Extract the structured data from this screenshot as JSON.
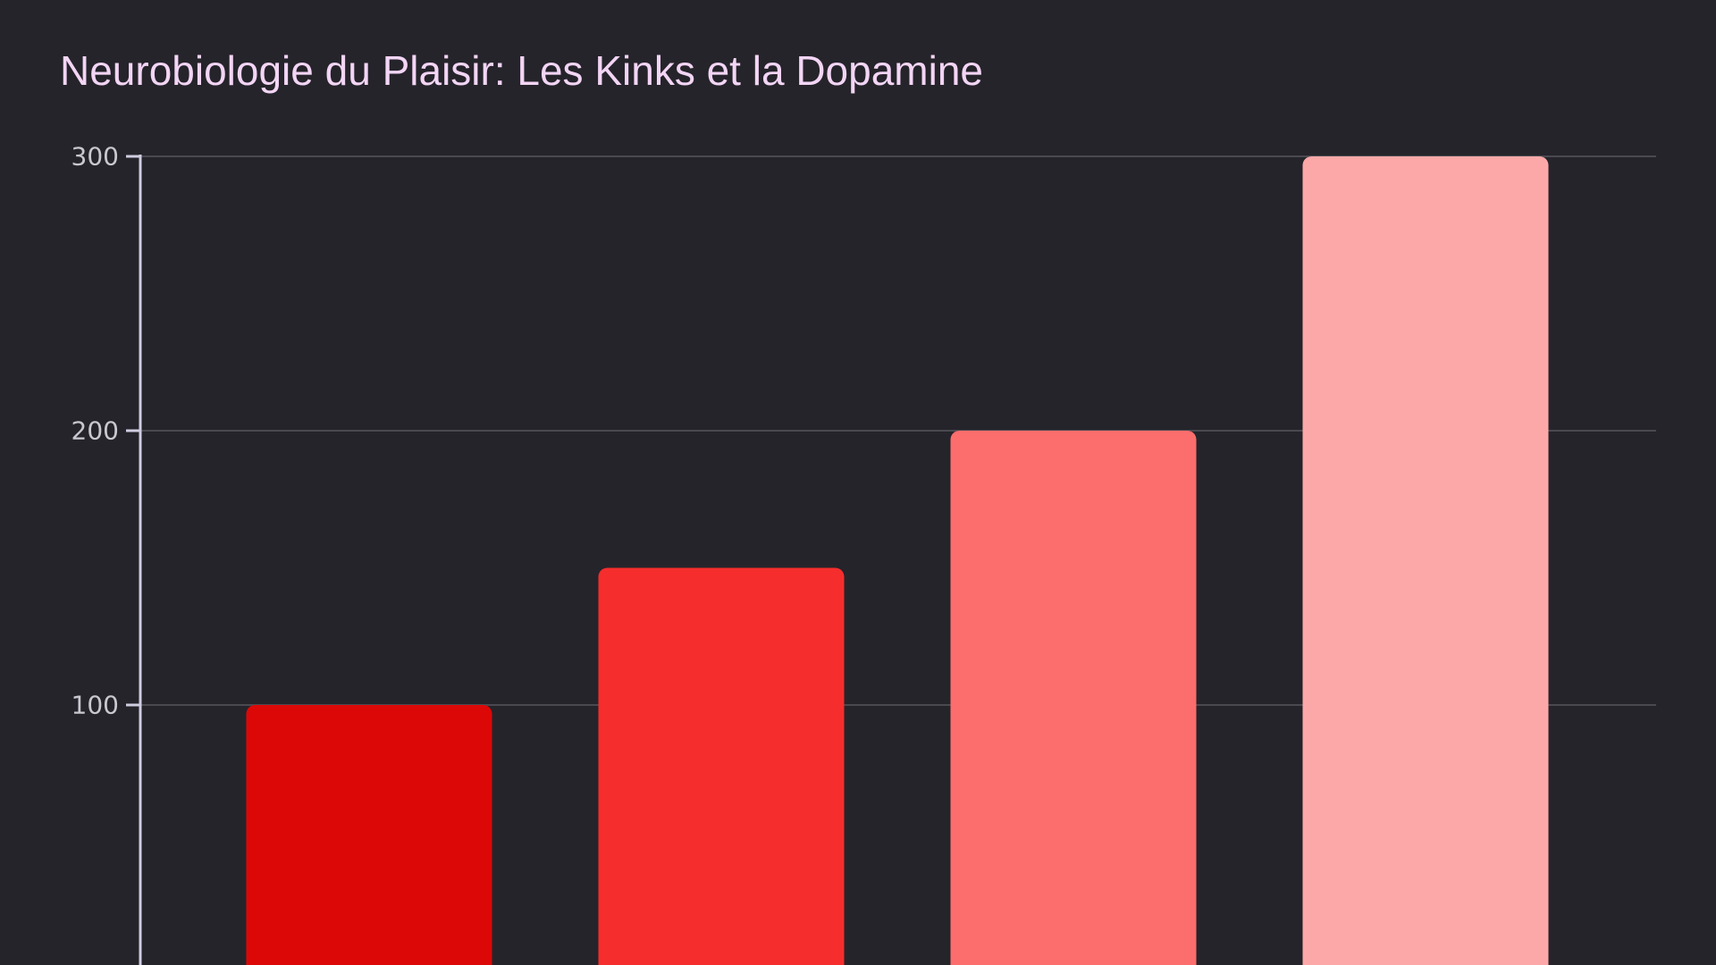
{
  "chart_data": {
    "type": "bar",
    "title": "Neurobiologie du Plaisir: Les Kinks et la Dopamine",
    "xlabel": "",
    "ylabel": "",
    "categories": [
      "",
      "",
      "",
      ""
    ],
    "values": [
      100,
      150,
      200,
      300
    ],
    "ylim": [
      0,
      300
    ],
    "yticks": [
      100,
      200,
      300
    ],
    "grid": true,
    "colors": [
      "#dc0808",
      "#f62d2d",
      "#fc6d6d",
      "#fca8a8"
    ]
  }
}
